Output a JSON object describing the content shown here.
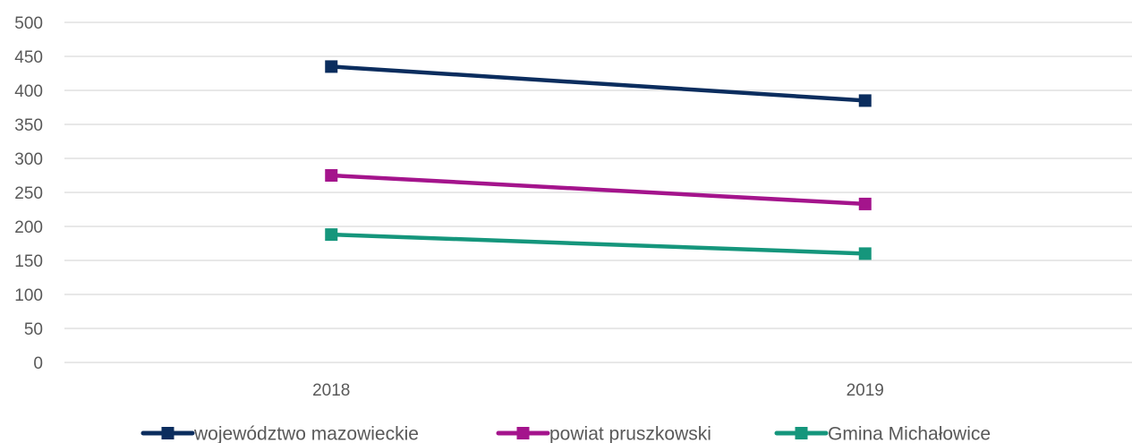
{
  "chart_data": {
    "type": "line",
    "categories": [
      "2018",
      "2019"
    ],
    "ylim": [
      0,
      500
    ],
    "yticks": [
      0,
      50,
      100,
      150,
      200,
      250,
      300,
      350,
      400,
      450,
      500
    ],
    "grid": true,
    "legend_position": "bottom",
    "series": [
      {
        "name": "województwo mazowieckie",
        "values": [
          435,
          385
        ],
        "color": "#0b2d5e",
        "marker": "square"
      },
      {
        "name": "powiat pruszkowski",
        "values": [
          275,
          233
        ],
        "color": "#a4148c",
        "marker": "square"
      },
      {
        "name": "Gmina Michałowice",
        "values": [
          188,
          160
        ],
        "color": "#15967c",
        "marker": "square"
      }
    ]
  }
}
